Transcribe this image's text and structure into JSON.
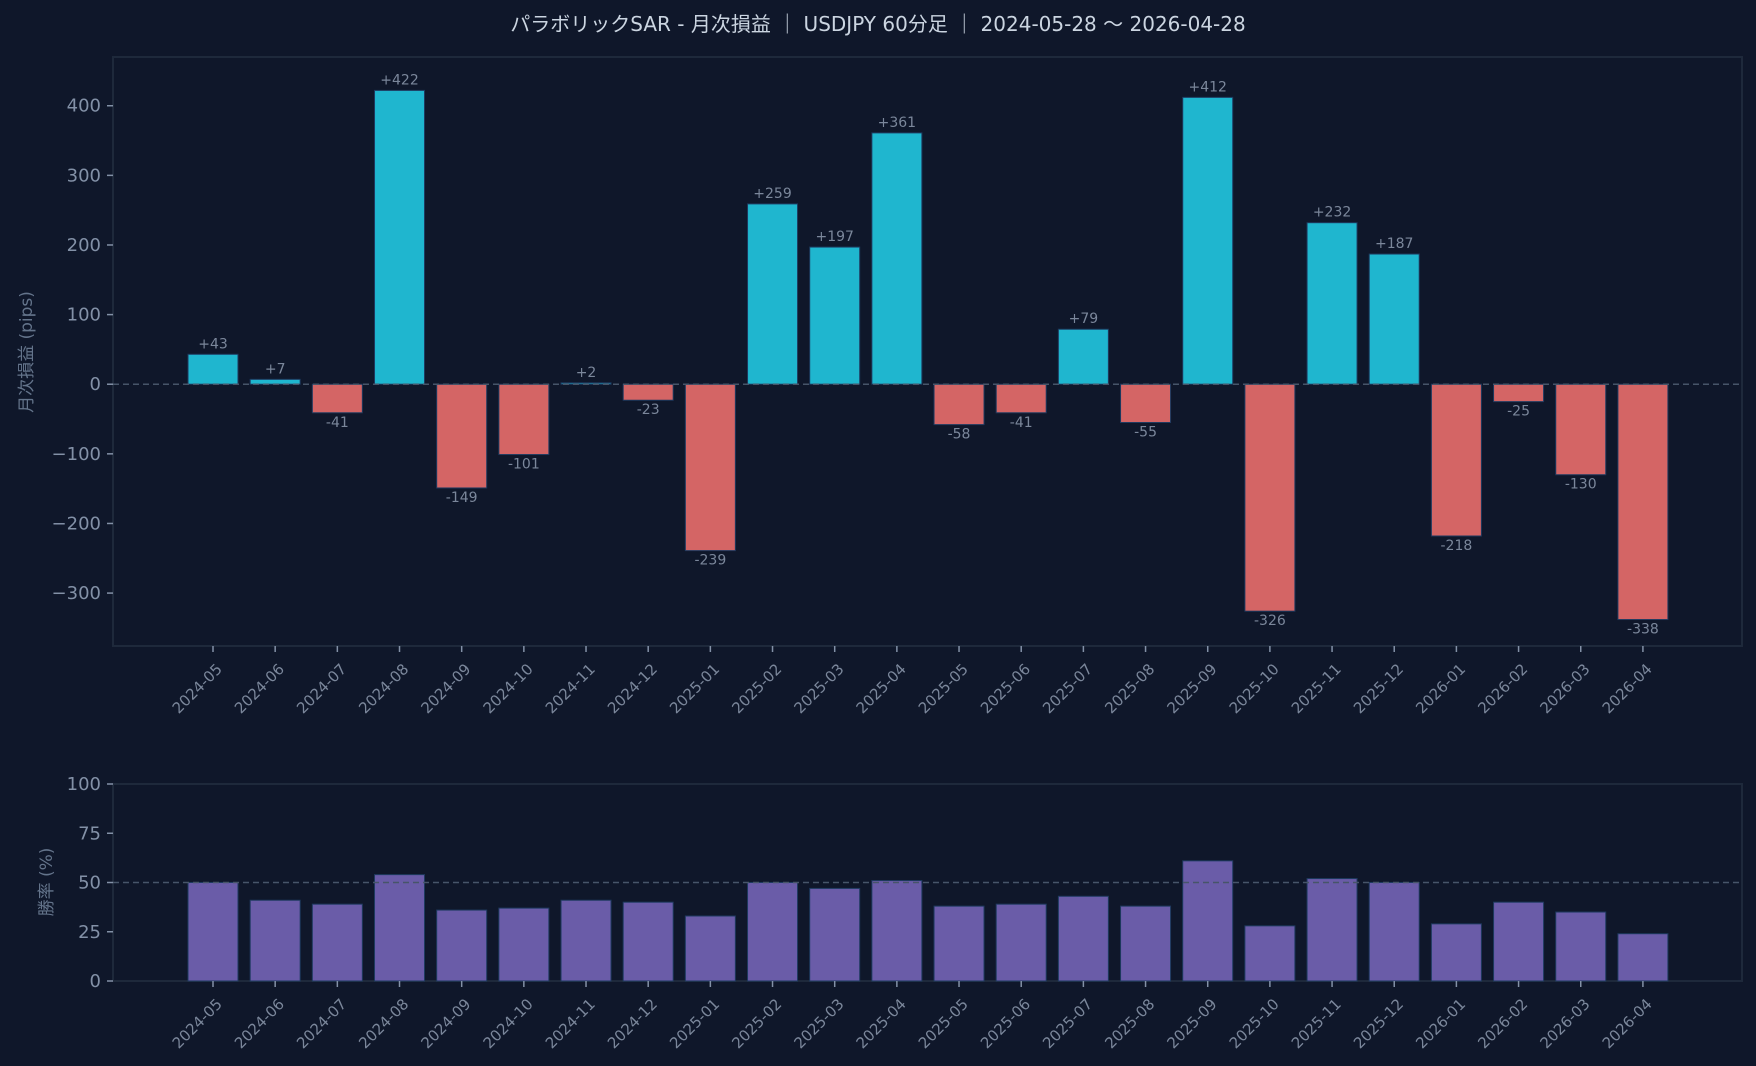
{
  "header": {
    "title": "パラボリックSAR - 月次損益 ｜ USDJPY 60分足 ｜ 2024-05-28 〜 2026-04-28"
  },
  "colors": {
    "background": "#0f172a",
    "profit": "#1fb6cf",
    "loss": "#d46565",
    "winrate": "#6a5ca8",
    "axis": "#1e293b",
    "reference_line": "#475569",
    "text": "#94a3b8"
  },
  "chart_data": [
    {
      "type": "bar",
      "title": "パラボリックSAR - 月次損益 ｜ USDJPY 60分足 ｜ 2024-05-28 〜 2026-04-28",
      "xlabel": "",
      "ylabel": "月次損益 (pips)",
      "ylim": [
        -376,
        470
      ],
      "yticks": [
        -300,
        -200,
        -100,
        0,
        100,
        200,
        300,
        400
      ],
      "ytick_labels": [
        "−300",
        "−200",
        "−100",
        "0",
        "100",
        "200",
        "300",
        "400"
      ],
      "grid": false,
      "reference_line": {
        "y": 0,
        "style": "dashed"
      },
      "categories": [
        "2024-05",
        "2024-06",
        "2024-07",
        "2024-08",
        "2024-09",
        "2024-10",
        "2024-11",
        "2024-12",
        "2025-01",
        "2025-02",
        "2025-03",
        "2025-04",
        "2025-05",
        "2025-06",
        "2025-07",
        "2025-08",
        "2025-09",
        "2025-10",
        "2025-11",
        "2025-12",
        "2026-01",
        "2026-02",
        "2026-03",
        "2026-04"
      ],
      "values": [
        43,
        7,
        -41,
        422,
        -149,
        -101,
        2,
        -23,
        -239,
        259,
        197,
        361,
        -58,
        -41,
        79,
        -55,
        412,
        -326,
        232,
        187,
        -218,
        -25,
        -130,
        -338
      ],
      "data_labels": [
        "+43",
        "+7",
        "-41",
        "+422",
        "-149",
        "-101",
        "+2",
        "-23",
        "-239",
        "+259",
        "+197",
        "+361",
        "-58",
        "-41",
        "+79",
        "-55",
        "+412",
        "-326",
        "+232",
        "+187",
        "-218",
        "-25",
        "-130",
        "-338"
      ]
    },
    {
      "type": "bar",
      "title": "",
      "xlabel": "",
      "ylabel": "勝率 (%)",
      "ylim": [
        0,
        100
      ],
      "yticks": [
        0,
        25,
        50,
        75,
        100
      ],
      "ytick_labels": [
        "0",
        "25",
        "50",
        "75",
        "100"
      ],
      "grid": false,
      "reference_line": {
        "y": 50,
        "style": "dashed"
      },
      "categories": [
        "2024-05",
        "2024-06",
        "2024-07",
        "2024-08",
        "2024-09",
        "2024-10",
        "2024-11",
        "2024-12",
        "2025-01",
        "2025-02",
        "2025-03",
        "2025-04",
        "2025-05",
        "2025-06",
        "2025-07",
        "2025-08",
        "2025-09",
        "2025-10",
        "2025-11",
        "2025-12",
        "2026-01",
        "2026-02",
        "2026-03",
        "2026-04"
      ],
      "values": [
        50,
        41,
        39,
        54,
        36,
        37,
        41,
        40,
        33,
        50,
        47,
        51,
        38,
        39,
        43,
        38,
        61,
        28,
        52,
        50,
        29,
        40,
        35,
        24
      ]
    }
  ]
}
